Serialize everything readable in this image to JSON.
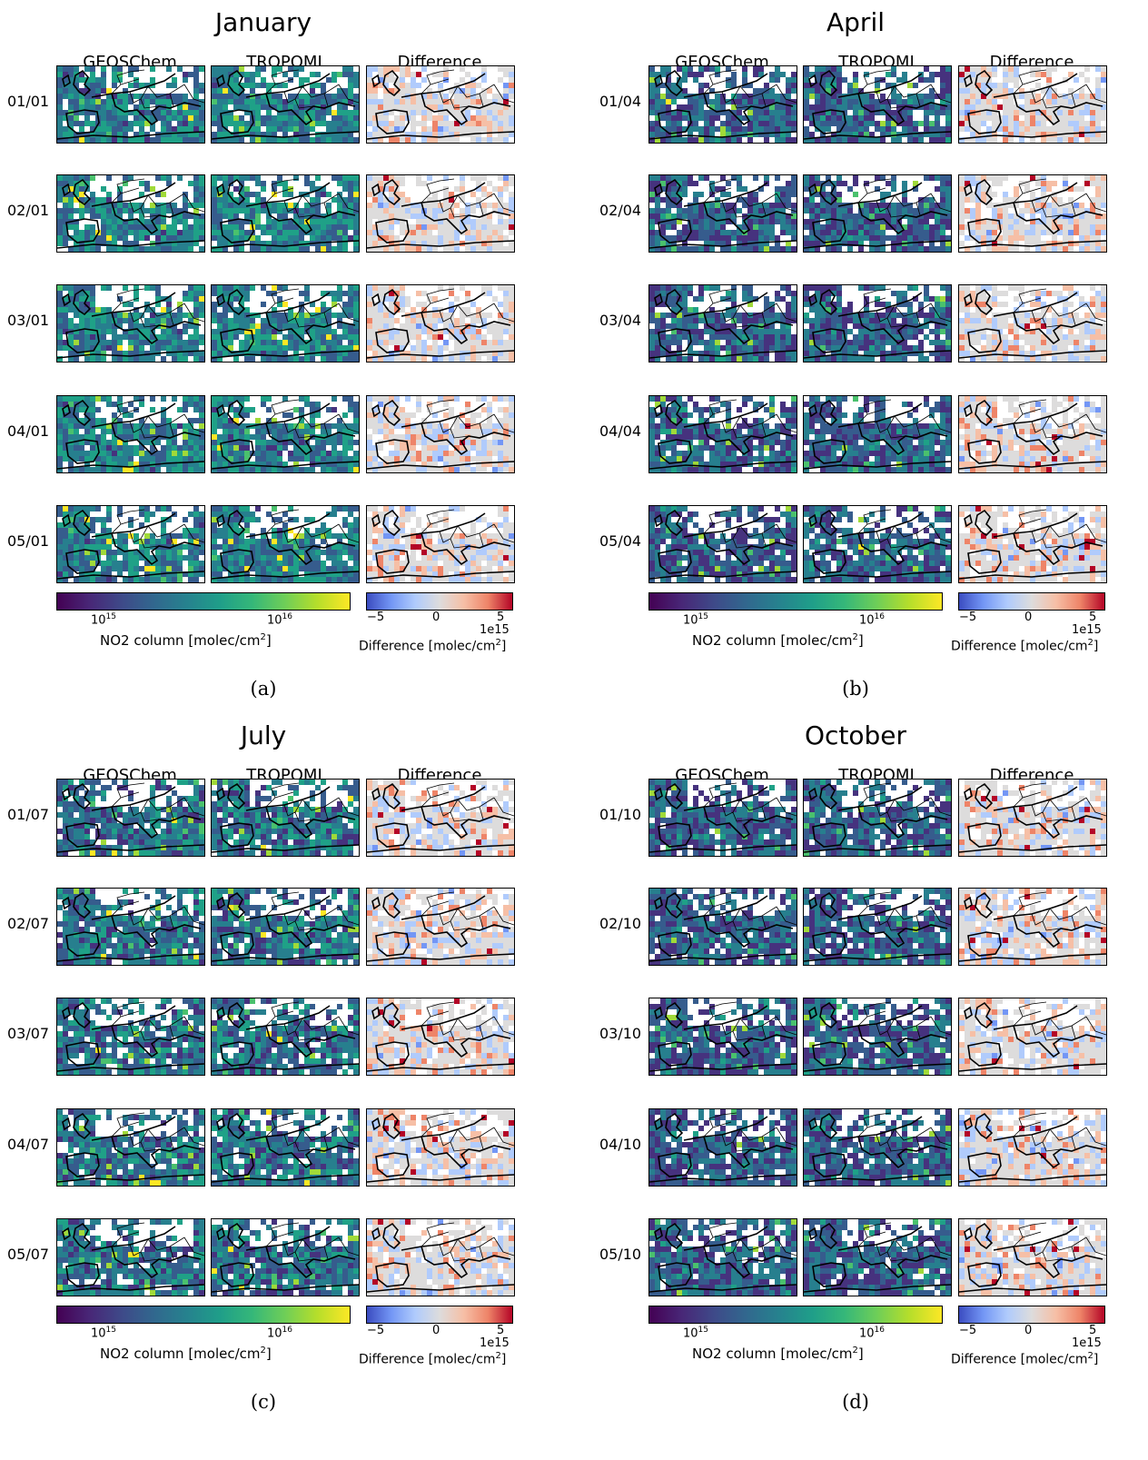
{
  "columns": [
    "GEOSChem",
    "TROPOMI",
    "Difference"
  ],
  "panels": [
    {
      "id": "a",
      "title": "January",
      "label": "(a)",
      "rows": [
        "01/01",
        "02/01",
        "03/01",
        "04/01",
        "05/01"
      ]
    },
    {
      "id": "b",
      "title": "April",
      "label": "(b)",
      "rows": [
        "01/04",
        "02/04",
        "03/04",
        "04/04",
        "05/04"
      ]
    },
    {
      "id": "c",
      "title": "July",
      "label": "(c)",
      "rows": [
        "01/07",
        "02/07",
        "03/07",
        "04/07",
        "05/07"
      ]
    },
    {
      "id": "d",
      "title": "October",
      "label": "(d)",
      "rows": [
        "01/10",
        "02/10",
        "03/10",
        "04/10",
        "05/10"
      ]
    }
  ],
  "colorbar_main": {
    "colormap": "viridis",
    "scale": "log",
    "ticks": [
      "10",
      "10"
    ],
    "tick_exponents": [
      "15",
      "16"
    ],
    "label_prefix": "NO2 column [molec/cm",
    "label_exp": "2",
    "label_suffix": "]"
  },
  "colorbar_diff": {
    "colormap": "coolwarm",
    "ticks": [
      "−5",
      "0",
      "5"
    ],
    "offset_text": "1e15",
    "label_prefix": "Difference [molec/cm",
    "label_exp": "2",
    "label_suffix": "]"
  },
  "colors": {
    "viridis_dark": "#440154",
    "viridis_mid": "#21918c",
    "viridis_high": "#fde725",
    "diff_neg": "#3b4cc0",
    "diff_zero": "#dddcdc",
    "diff_pos": "#b40426"
  }
}
